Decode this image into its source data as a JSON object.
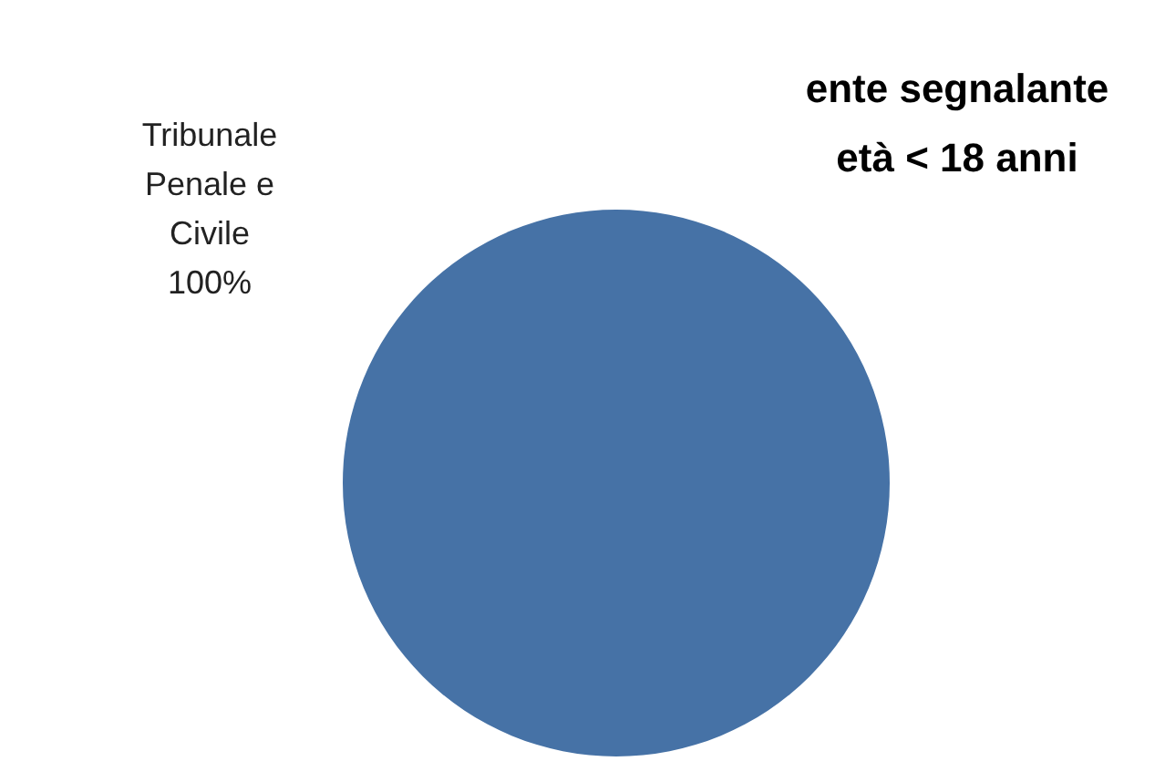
{
  "chart_data": {
    "type": "pie",
    "title": "ente segnalante\netà < 18 anni",
    "categories": [
      "Tribunale Penale e Civile"
    ],
    "values": [
      100
    ],
    "value_labels": [
      "100%"
    ],
    "colors": [
      "#4672a6"
    ],
    "legend": false
  }
}
